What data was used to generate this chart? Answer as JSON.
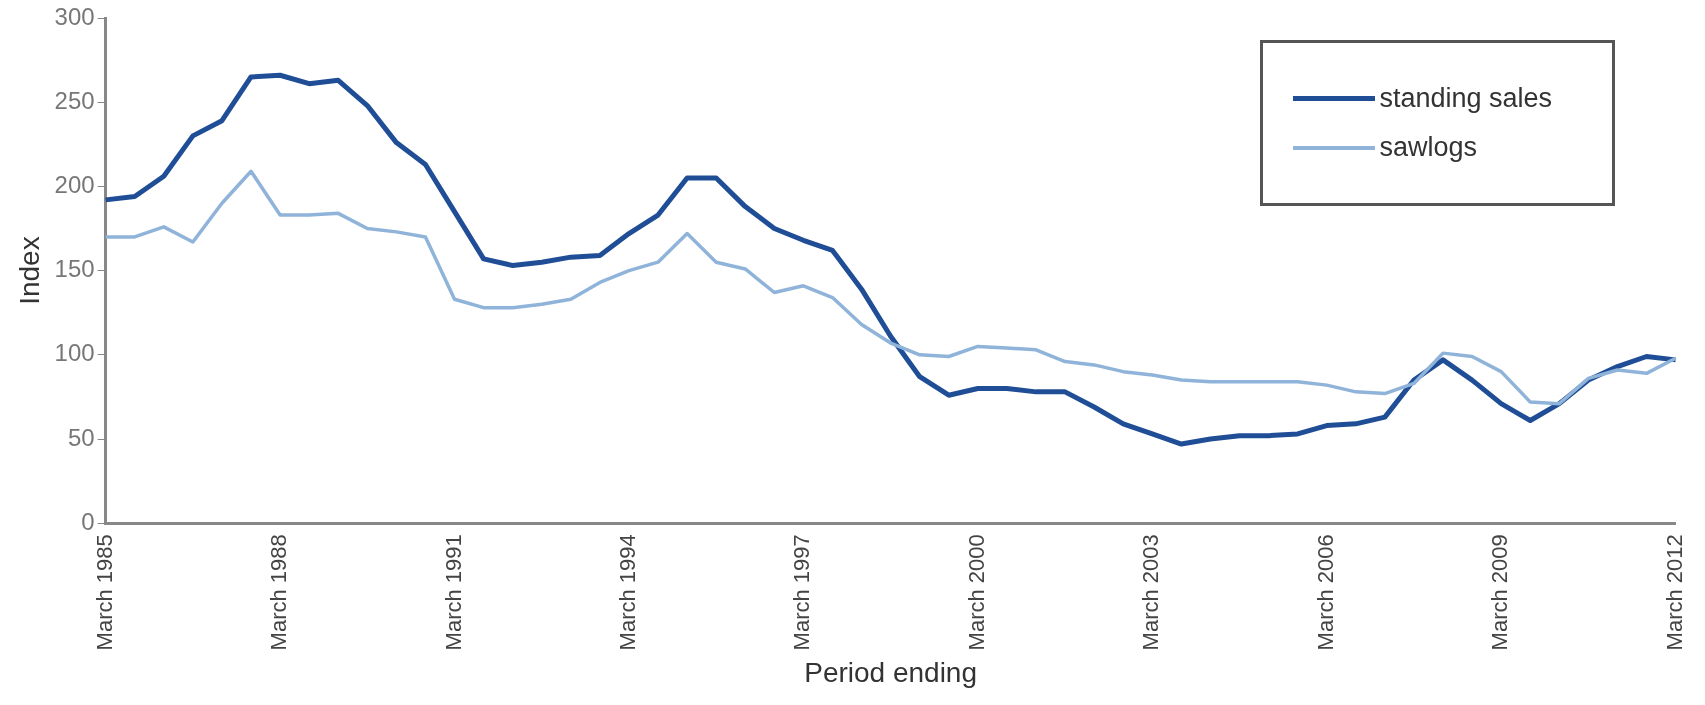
{
  "chart_data": {
    "type": "line",
    "xlabel": "Period ending",
    "ylabel": "Index",
    "categories": [
      "March 1985",
      null,
      null,
      null,
      null,
      null,
      "March 1988",
      null,
      null,
      null,
      null,
      null,
      "March 1991",
      null,
      null,
      null,
      null,
      null,
      "March 1994",
      null,
      null,
      null,
      null,
      null,
      "March 1997",
      null,
      null,
      null,
      null,
      null,
      "March 2000",
      null,
      null,
      null,
      null,
      null,
      "March 2003",
      null,
      null,
      null,
      null,
      null,
      "March 2006",
      null,
      null,
      null,
      null,
      null,
      "March 2009",
      null,
      null,
      null,
      null,
      null,
      "March 2012"
    ],
    "series": [
      {
        "name": "standing sales",
        "color": "#1f4e96",
        "values": [
          192,
          194,
          206,
          230,
          239,
          265,
          266,
          261,
          263,
          248,
          226,
          213,
          185,
          157,
          153,
          155,
          158,
          159,
          172,
          183,
          205,
          205,
          188,
          175,
          168,
          162,
          139,
          111,
          87,
          76,
          80,
          80,
          78,
          78,
          69,
          59,
          53,
          47,
          50,
          52,
          52,
          53,
          58,
          59,
          63,
          85,
          97,
          85,
          71,
          61,
          71,
          85,
          93,
          99,
          97
        ]
      },
      {
        "name": "sawlogs",
        "color": "#8fb3d9",
        "values": [
          170,
          170,
          176,
          167,
          190,
          209,
          183,
          183,
          184,
          175,
          173,
          170,
          133,
          128,
          128,
          130,
          133,
          143,
          150,
          155,
          172,
          155,
          151,
          137,
          141,
          134,
          118,
          107,
          100,
          99,
          105,
          104,
          103,
          96,
          94,
          90,
          88,
          85,
          84,
          84,
          84,
          84,
          82,
          78,
          77,
          83,
          101,
          99,
          90,
          72,
          71,
          86,
          91,
          89,
          98
        ]
      }
    ],
    "ylim": [
      0,
      300
    ],
    "yticks": [
      0,
      50,
      100,
      150,
      200,
      250,
      300
    ],
    "grid": false,
    "legend": "top right",
    "marker": "none",
    "line_style": "solid"
  }
}
